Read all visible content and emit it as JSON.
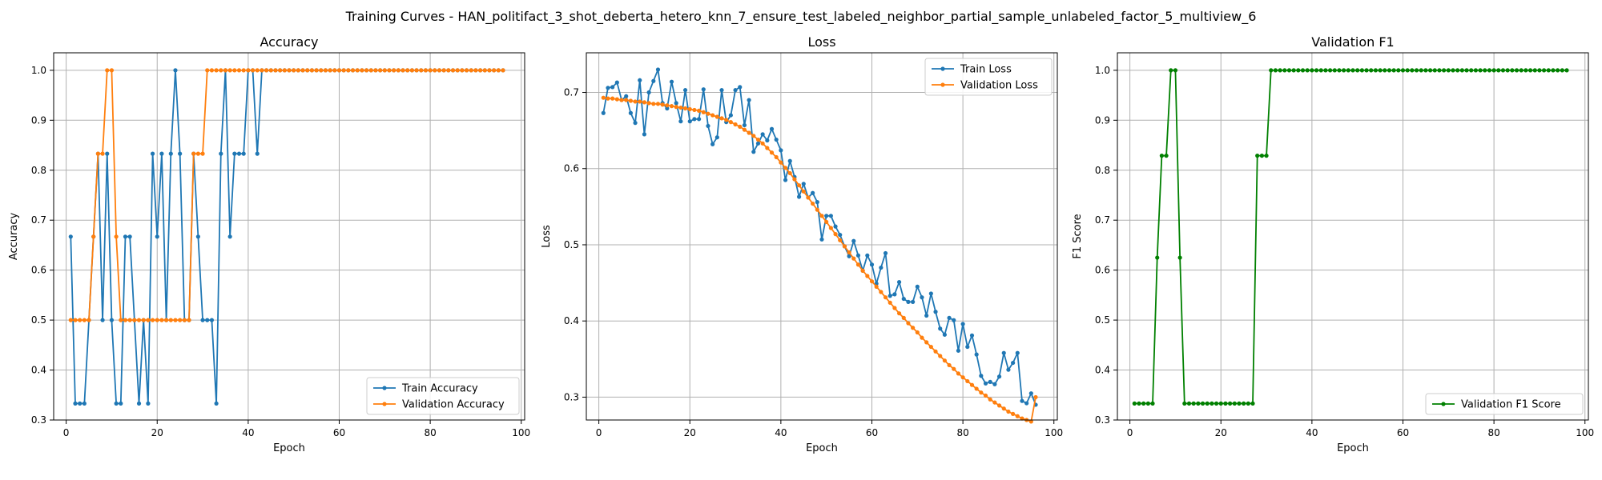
{
  "suptitle": "Training Curves - HAN_politifact_3_shot_deberta_hetero_knn_7_ensure_test_labeled_neighbor_partial_sample_unlabeled_factor_5_multiview_6",
  "colors": {
    "blue": "#1f77b4",
    "orange": "#ff7f0e",
    "green": "#008000",
    "grid": "#b0b0b0"
  },
  "chart_data": [
    {
      "type": "line",
      "title": "Accuracy",
      "xlabel": "Epoch",
      "ylabel": "Accuracy",
      "xlim": [
        -2.75,
        100.75
      ],
      "ylim": [
        0.3,
        1.035
      ],
      "xticks": [
        0,
        20,
        40,
        60,
        80,
        100
      ],
      "yticks": [
        0.3,
        0.4,
        0.5,
        0.6,
        0.7,
        0.8,
        0.9,
        1.0
      ],
      "grid": true,
      "legend_loc": "lower-right",
      "series": [
        {
          "name": "Train Accuracy",
          "color": "#1f77b4",
          "x": [
            1,
            2,
            3,
            4,
            5,
            6,
            7,
            8,
            9,
            10,
            11,
            12,
            13,
            14,
            15,
            16,
            17,
            18,
            19,
            20,
            21,
            22,
            23,
            24,
            25,
            26,
            27,
            28,
            29,
            30,
            31,
            32,
            33,
            34,
            35,
            36,
            37,
            38,
            39,
            40,
            41,
            42,
            43,
            44,
            45,
            46,
            47,
            48,
            49,
            50,
            51,
            52,
            53,
            54,
            55,
            56,
            57,
            58,
            59,
            60,
            61,
            62,
            63,
            64,
            65,
            66,
            67,
            68,
            69,
            70,
            71,
            72,
            73,
            74,
            75,
            76,
            77,
            78,
            79,
            80,
            81,
            82,
            83,
            84,
            85,
            86,
            87,
            88,
            89,
            90,
            91,
            92,
            93,
            94,
            95,
            96
          ],
          "y": [
            0.667,
            0.333,
            0.333,
            0.333,
            0.5,
            0.667,
            0.833,
            0.5,
            0.833,
            0.5,
            0.333,
            0.333,
            0.667,
            0.667,
            0.5,
            0.333,
            0.5,
            0.333,
            0.833,
            0.667,
            0.833,
            0.5,
            0.833,
            1.0,
            0.833,
            0.5,
            0.5,
            0.833,
            0.667,
            0.5,
            0.5,
            0.5,
            0.333,
            0.833,
            1.0,
            0.667,
            0.833,
            0.833,
            0.833,
            1.0,
            1.0,
            0.833,
            1.0,
            1.0,
            1.0,
            1.0,
            1.0,
            1.0,
            1.0,
            1.0,
            1.0,
            1.0,
            1.0,
            1.0,
            1.0,
            1.0,
            1.0,
            1.0,
            1.0,
            1.0,
            1.0,
            1.0,
            1.0,
            1.0,
            1.0,
            1.0,
            1.0,
            1.0,
            1.0,
            1.0,
            1.0,
            1.0,
            1.0,
            1.0,
            1.0,
            1.0,
            1.0,
            1.0,
            1.0,
            1.0,
            1.0,
            1.0,
            1.0,
            1.0,
            1.0,
            1.0,
            1.0,
            1.0,
            1.0,
            1.0,
            1.0,
            1.0,
            1.0,
            1.0,
            1.0,
            1.0
          ]
        },
        {
          "name": "Validation Accuracy",
          "color": "#ff7f0e",
          "x": [
            1,
            2,
            3,
            4,
            5,
            6,
            7,
            8,
            9,
            10,
            11,
            12,
            13,
            14,
            15,
            16,
            17,
            18,
            19,
            20,
            21,
            22,
            23,
            24,
            25,
            26,
            27,
            28,
            29,
            30,
            31,
            32,
            33,
            34,
            35,
            36,
            37,
            38,
            39,
            40,
            41,
            42,
            43,
            44,
            45,
            46,
            47,
            48,
            49,
            50,
            51,
            52,
            53,
            54,
            55,
            56,
            57,
            58,
            59,
            60,
            61,
            62,
            63,
            64,
            65,
            66,
            67,
            68,
            69,
            70,
            71,
            72,
            73,
            74,
            75,
            76,
            77,
            78,
            79,
            80,
            81,
            82,
            83,
            84,
            85,
            86,
            87,
            88,
            89,
            90,
            91,
            92,
            93,
            94,
            95,
            96
          ],
          "y": [
            0.5,
            0.5,
            0.5,
            0.5,
            0.5,
            0.667,
            0.833,
            0.833,
            1.0,
            1.0,
            0.667,
            0.5,
            0.5,
            0.5,
            0.5,
            0.5,
            0.5,
            0.5,
            0.5,
            0.5,
            0.5,
            0.5,
            0.5,
            0.5,
            0.5,
            0.5,
            0.5,
            0.833,
            0.833,
            0.833,
            1.0,
            1.0,
            1.0,
            1.0,
            1.0,
            1.0,
            1.0,
            1.0,
            1.0,
            1.0,
            1.0,
            1.0,
            1.0,
            1.0,
            1.0,
            1.0,
            1.0,
            1.0,
            1.0,
            1.0,
            1.0,
            1.0,
            1.0,
            1.0,
            1.0,
            1.0,
            1.0,
            1.0,
            1.0,
            1.0,
            1.0,
            1.0,
            1.0,
            1.0,
            1.0,
            1.0,
            1.0,
            1.0,
            1.0,
            1.0,
            1.0,
            1.0,
            1.0,
            1.0,
            1.0,
            1.0,
            1.0,
            1.0,
            1.0,
            1.0,
            1.0,
            1.0,
            1.0,
            1.0,
            1.0,
            1.0,
            1.0,
            1.0,
            1.0,
            1.0,
            1.0,
            1.0,
            1.0,
            1.0,
            1.0,
            1.0
          ]
        }
      ]
    },
    {
      "type": "line",
      "title": "Loss",
      "xlabel": "Epoch",
      "ylabel": "Loss",
      "xlim": [
        -2.75,
        100.75
      ],
      "ylim": [
        0.27,
        0.752
      ],
      "xticks": [
        0,
        20,
        40,
        60,
        80,
        100
      ],
      "yticks": [
        0.3,
        0.4,
        0.5,
        0.6,
        0.7
      ],
      "grid": true,
      "legend_loc": "upper-right",
      "series": [
        {
          "name": "Train Loss",
          "color": "#1f77b4",
          "x": [
            1,
            2,
            3,
            4,
            5,
            6,
            7,
            8,
            9,
            10,
            11,
            12,
            13,
            14,
            15,
            16,
            17,
            18,
            19,
            20,
            21,
            22,
            23,
            24,
            25,
            26,
            27,
            28,
            29,
            30,
            31,
            32,
            33,
            34,
            35,
            36,
            37,
            38,
            39,
            40,
            41,
            42,
            43,
            44,
            45,
            46,
            47,
            48,
            49,
            50,
            51,
            52,
            53,
            54,
            55,
            56,
            57,
            58,
            59,
            60,
            61,
            62,
            63,
            64,
            65,
            66,
            67,
            68,
            69,
            70,
            71,
            72,
            73,
            74,
            75,
            76,
            77,
            78,
            79,
            80,
            81,
            82,
            83,
            84,
            85,
            86,
            87,
            88,
            89,
            90,
            91,
            92,
            93,
            94,
            95,
            96
          ],
          "y": [
            0.673,
            0.706,
            0.707,
            0.713,
            0.69,
            0.695,
            0.673,
            0.66,
            0.716,
            0.645,
            0.7,
            0.715,
            0.73,
            0.686,
            0.679,
            0.714,
            0.686,
            0.662,
            0.703,
            0.662,
            0.665,
            0.665,
            0.704,
            0.656,
            0.632,
            0.641,
            0.703,
            0.661,
            0.67,
            0.703,
            0.707,
            0.657,
            0.69,
            0.622,
            0.633,
            0.645,
            0.637,
            0.652,
            0.638,
            0.624,
            0.585,
            0.61,
            0.589,
            0.563,
            0.58,
            0.562,
            0.568,
            0.556,
            0.507,
            0.538,
            0.538,
            0.524,
            0.513,
            0.498,
            0.485,
            0.505,
            0.486,
            0.466,
            0.486,
            0.474,
            0.449,
            0.47,
            0.489,
            0.433,
            0.435,
            0.451,
            0.429,
            0.425,
            0.425,
            0.445,
            0.431,
            0.407,
            0.436,
            0.412,
            0.39,
            0.382,
            0.404,
            0.401,
            0.361,
            0.396,
            0.366,
            0.381,
            0.356,
            0.328,
            0.318,
            0.32,
            0.317,
            0.327,
            0.358,
            0.336,
            0.345,
            0.358,
            0.295,
            0.292,
            0.305,
            0.29
          ]
        },
        {
          "name": "Validation Loss",
          "color": "#ff7f0e",
          "x": [
            1,
            2,
            3,
            4,
            5,
            6,
            7,
            8,
            9,
            10,
            11,
            12,
            13,
            14,
            15,
            16,
            17,
            18,
            19,
            20,
            21,
            22,
            23,
            24,
            25,
            26,
            27,
            28,
            29,
            30,
            31,
            32,
            33,
            34,
            35,
            36,
            37,
            38,
            39,
            40,
            41,
            42,
            43,
            44,
            45,
            46,
            47,
            48,
            49,
            50,
            51,
            52,
            53,
            54,
            55,
            56,
            57,
            58,
            59,
            60,
            61,
            62,
            63,
            64,
            65,
            66,
            67,
            68,
            69,
            70,
            71,
            72,
            73,
            74,
            75,
            76,
            77,
            78,
            79,
            80,
            81,
            82,
            83,
            84,
            85,
            86,
            87,
            88,
            89,
            90,
            91,
            92,
            93,
            94,
            95,
            96
          ],
          "y": [
            0.693,
            0.692,
            0.692,
            0.691,
            0.69,
            0.69,
            0.689,
            0.688,
            0.688,
            0.687,
            0.686,
            0.685,
            0.685,
            0.684,
            0.683,
            0.682,
            0.681,
            0.68,
            0.679,
            0.678,
            0.677,
            0.676,
            0.674,
            0.672,
            0.67,
            0.668,
            0.666,
            0.664,
            0.661,
            0.658,
            0.655,
            0.651,
            0.647,
            0.643,
            0.638,
            0.633,
            0.627,
            0.621,
            0.615,
            0.608,
            0.601,
            0.594,
            0.586,
            0.578,
            0.57,
            0.562,
            0.554,
            0.546,
            0.538,
            0.53,
            0.522,
            0.514,
            0.506,
            0.498,
            0.49,
            0.482,
            0.474,
            0.466,
            0.459,
            0.452,
            0.445,
            0.438,
            0.431,
            0.424,
            0.417,
            0.41,
            0.404,
            0.397,
            0.391,
            0.385,
            0.378,
            0.372,
            0.366,
            0.36,
            0.354,
            0.348,
            0.342,
            0.337,
            0.331,
            0.326,
            0.321,
            0.316,
            0.311,
            0.306,
            0.302,
            0.297,
            0.293,
            0.289,
            0.285,
            0.281,
            0.278,
            0.275,
            0.272,
            0.27,
            0.268,
            0.3
          ]
        }
      ]
    },
    {
      "type": "line",
      "title": "Validation F1",
      "xlabel": "Epoch",
      "ylabel": "F1 Score",
      "xlim": [
        -2.75,
        100.75
      ],
      "ylim": [
        0.3,
        1.035
      ],
      "xticks": [
        0,
        20,
        40,
        60,
        80,
        100
      ],
      "yticks": [
        0.3,
        0.4,
        0.5,
        0.6,
        0.7,
        0.8,
        0.9,
        1.0
      ],
      "grid": true,
      "legend_loc": "lower-right",
      "series": [
        {
          "name": "Validation F1 Score",
          "color": "#008000",
          "x": [
            1,
            2,
            3,
            4,
            5,
            6,
            7,
            8,
            9,
            10,
            11,
            12,
            13,
            14,
            15,
            16,
            17,
            18,
            19,
            20,
            21,
            22,
            23,
            24,
            25,
            26,
            27,
            28,
            29,
            30,
            31,
            32,
            33,
            34,
            35,
            36,
            37,
            38,
            39,
            40,
            41,
            42,
            43,
            44,
            45,
            46,
            47,
            48,
            49,
            50,
            51,
            52,
            53,
            54,
            55,
            56,
            57,
            58,
            59,
            60,
            61,
            62,
            63,
            64,
            65,
            66,
            67,
            68,
            69,
            70,
            71,
            72,
            73,
            74,
            75,
            76,
            77,
            78,
            79,
            80,
            81,
            82,
            83,
            84,
            85,
            86,
            87,
            88,
            89,
            90,
            91,
            92,
            93,
            94,
            95,
            96
          ],
          "y": [
            0.333,
            0.333,
            0.333,
            0.333,
            0.333,
            0.625,
            0.829,
            0.829,
            1.0,
            1.0,
            0.625,
            0.333,
            0.333,
            0.333,
            0.333,
            0.333,
            0.333,
            0.333,
            0.333,
            0.333,
            0.333,
            0.333,
            0.333,
            0.333,
            0.333,
            0.333,
            0.333,
            0.829,
            0.829,
            0.829,
            1.0,
            1.0,
            1.0,
            1.0,
            1.0,
            1.0,
            1.0,
            1.0,
            1.0,
            1.0,
            1.0,
            1.0,
            1.0,
            1.0,
            1.0,
            1.0,
            1.0,
            1.0,
            1.0,
            1.0,
            1.0,
            1.0,
            1.0,
            1.0,
            1.0,
            1.0,
            1.0,
            1.0,
            1.0,
            1.0,
            1.0,
            1.0,
            1.0,
            1.0,
            1.0,
            1.0,
            1.0,
            1.0,
            1.0,
            1.0,
            1.0,
            1.0,
            1.0,
            1.0,
            1.0,
            1.0,
            1.0,
            1.0,
            1.0,
            1.0,
            1.0,
            1.0,
            1.0,
            1.0,
            1.0,
            1.0,
            1.0,
            1.0,
            1.0,
            1.0,
            1.0,
            1.0,
            1.0,
            1.0,
            1.0,
            1.0
          ]
        }
      ]
    }
  ]
}
